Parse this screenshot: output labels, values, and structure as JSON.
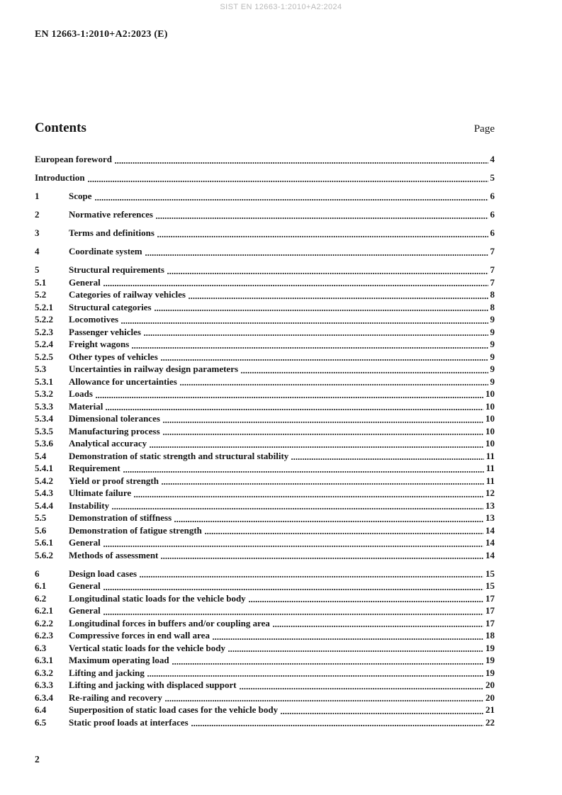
{
  "watermark": "SIST EN 12663-1:2010+A2:2024",
  "document_ref": "EN 12663-1:2010+A2:2023 (E)",
  "contents_header": {
    "heading": "Contents",
    "page_label": "Page"
  },
  "toc": {
    "entries": [
      {
        "num": "",
        "title": "European foreword",
        "page": "4",
        "major": true
      },
      {
        "num": "",
        "title": "Introduction",
        "page": "5",
        "major": true
      },
      {
        "num": "1",
        "title": "Scope",
        "page": "6",
        "major": true
      },
      {
        "num": "2",
        "title": "Normative references",
        "page": "6",
        "major": true
      },
      {
        "num": "3",
        "title": "Terms and definitions",
        "page": "6",
        "major": true
      },
      {
        "num": "4",
        "title": "Coordinate system",
        "page": "7",
        "major": true
      },
      {
        "num": "5",
        "title": "Structural requirements",
        "page": "7",
        "major": true
      },
      {
        "num": "5.1",
        "title": "General",
        "page": "7",
        "major": false
      },
      {
        "num": "5.2",
        "title": "Categories of railway vehicles",
        "page": "8",
        "major": false
      },
      {
        "num": "5.2.1",
        "title": "Structural categories",
        "page": "8",
        "major": false
      },
      {
        "num": "5.2.2",
        "title": "Locomotives",
        "page": "9",
        "major": false
      },
      {
        "num": "5.2.3",
        "title": "Passenger vehicles",
        "page": "9",
        "major": false
      },
      {
        "num": "5.2.4",
        "title": "Freight wagons",
        "page": "9",
        "major": false
      },
      {
        "num": "5.2.5",
        "title": "Other types of vehicles",
        "page": "9",
        "major": false
      },
      {
        "num": "5.3",
        "title": "Uncertainties in railway design parameters",
        "page": "9",
        "major": false
      },
      {
        "num": "5.3.1",
        "title": "Allowance for uncertainties",
        "page": "9",
        "major": false
      },
      {
        "num": "5.3.2",
        "title": "Loads",
        "page": "10",
        "major": false
      },
      {
        "num": "5.3.3",
        "title": "Material",
        "page": "10",
        "major": false
      },
      {
        "num": "5.3.4",
        "title": "Dimensional tolerances",
        "page": "10",
        "major": false
      },
      {
        "num": "5.3.5",
        "title": "Manufacturing process",
        "page": "10",
        "major": false
      },
      {
        "num": "5.3.6",
        "title": "Analytical accuracy",
        "page": "10",
        "major": false
      },
      {
        "num": "5.4",
        "title": "Demonstration of static strength and structural stability",
        "page": "11",
        "major": false
      },
      {
        "num": "5.4.1",
        "title": "Requirement",
        "page": "11",
        "major": false
      },
      {
        "num": "5.4.2",
        "title": "Yield or proof strength",
        "page": "11",
        "major": false
      },
      {
        "num": "5.4.3",
        "title": "Ultimate failure",
        "page": "12",
        "major": false
      },
      {
        "num": "5.4.4",
        "title": "Instability",
        "page": "13",
        "major": false
      },
      {
        "num": "5.5",
        "title": "Demonstration of stiffness",
        "page": "13",
        "major": false
      },
      {
        "num": "5.6",
        "title": "Demonstration of fatigue strength",
        "page": "14",
        "major": false
      },
      {
        "num": "5.6.1",
        "title": "General",
        "page": "14",
        "major": false
      },
      {
        "num": "5.6.2",
        "title": "Methods of assessment",
        "page": "14",
        "major": false
      },
      {
        "num": "6",
        "title": "Design load cases",
        "page": "15",
        "major": true
      },
      {
        "num": "6.1",
        "title": "General",
        "page": "15",
        "major": false
      },
      {
        "num": "6.2",
        "title": "Longitudinal static loads for the vehicle body",
        "page": "17",
        "major": false
      },
      {
        "num": "6.2.1",
        "title": "General",
        "page": "17",
        "major": false
      },
      {
        "num": "6.2.2",
        "title": "Longitudinal forces in buffers and/or coupling area",
        "page": "17",
        "major": false
      },
      {
        "num": "6.2.3",
        "title": "Compressive forces in end wall area",
        "page": "18",
        "major": false
      },
      {
        "num": "6.3",
        "title": "Vertical static loads for the vehicle body",
        "page": "19",
        "major": false
      },
      {
        "num": "6.3.1",
        "title": "Maximum operating load",
        "page": "19",
        "major": false
      },
      {
        "num": "6.3.2",
        "title": "Lifting and jacking",
        "page": "19",
        "major": false
      },
      {
        "num": "6.3.3",
        "title": "Lifting and jacking with displaced support",
        "page": "20",
        "major": false
      },
      {
        "num": "6.3.4",
        "title": "Re-railing and recovery",
        "page": "20",
        "major": false
      },
      {
        "num": "6.4",
        "title": "Superposition of static load cases for the vehicle body",
        "page": "21",
        "major": false
      },
      {
        "num": "6.5",
        "title": "Static proof loads at interfaces",
        "page": "22",
        "major": false
      }
    ]
  },
  "footer": {
    "page_number": "2"
  }
}
